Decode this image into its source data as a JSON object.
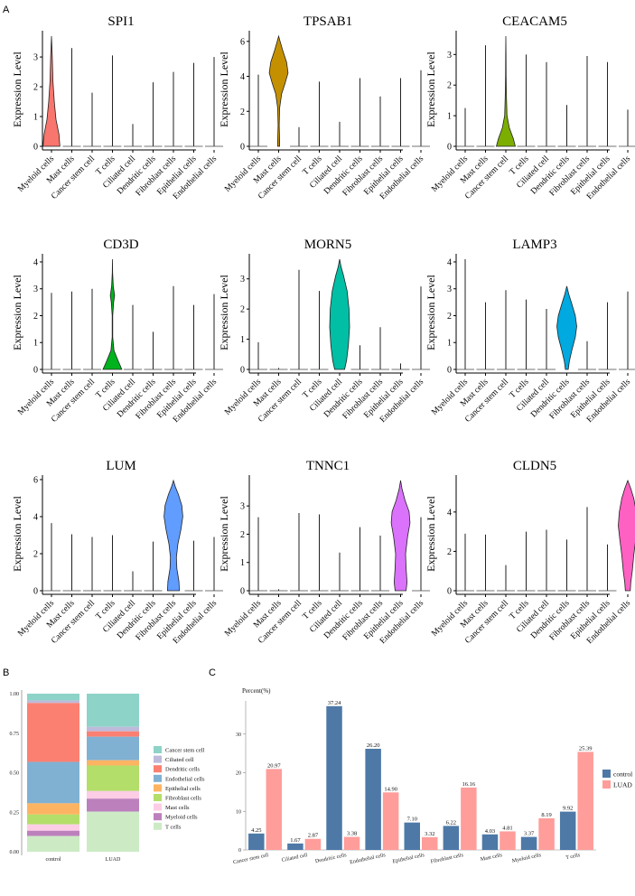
{
  "panels": {
    "a": "A",
    "b": "B",
    "c": "C"
  },
  "chart_data": [
    {
      "type": "violin",
      "panel": "A",
      "ylabel": "Expression Level",
      "categories": [
        "Myeloid cells",
        "Mast cells",
        "Cancer stem cell",
        "T cells",
        "Ciliated cell",
        "Dendritic cells",
        "Fibroblast cells",
        "Epithelial cells",
        "Endothelial cells"
      ],
      "genes": [
        {
          "title": "SPI1",
          "ylim": [
            0,
            3.7
          ],
          "ticks": [
            0,
            1,
            2,
            3
          ],
          "color": "#F8766D",
          "highlight": 0,
          "max": [
            3.7,
            3.3,
            1.8,
            3.05,
            0.75,
            2.15,
            2.5,
            2.8,
            3.0
          ],
          "profile": [
            [
              0,
              0.85
            ],
            [
              0.4,
              0.75
            ],
            [
              0.9,
              0.45
            ],
            [
              1.5,
              0.28
            ],
            [
              2.2,
              0.15
            ],
            [
              3.0,
              0.08
            ],
            [
              3.7,
              0.0
            ]
          ]
        },
        {
          "title": "TPSAB1",
          "ylim": [
            0,
            6.3
          ],
          "ticks": [
            0,
            2,
            4,
            6
          ],
          "color": "#C59000",
          "highlight": 1,
          "max": [
            4.1,
            6.3,
            1.1,
            3.7,
            1.4,
            3.9,
            2.85,
            3.9,
            4.35
          ],
          "profile": [
            [
              0,
              0.1
            ],
            [
              0.3,
              0.1
            ],
            [
              1.2,
              0.05
            ],
            [
              2.2,
              0.1
            ],
            [
              3.0,
              0.3
            ],
            [
              3.6,
              0.65
            ],
            [
              4.2,
              0.95
            ],
            [
              4.8,
              0.8
            ],
            [
              5.5,
              0.4
            ],
            [
              6.0,
              0.15
            ],
            [
              6.3,
              0.0
            ]
          ]
        },
        {
          "title": "CEACAM5",
          "ylim": [
            0,
            3.6
          ],
          "ticks": [
            0,
            1,
            2,
            3
          ],
          "color": "#7CAE00",
          "highlight": 2,
          "max": [
            1.25,
            3.3,
            3.6,
            3.0,
            2.75,
            1.35,
            2.95,
            2.75,
            1.2
          ],
          "profile": [
            [
              0,
              0.95
            ],
            [
              0.25,
              0.75
            ],
            [
              0.6,
              0.35
            ],
            [
              1.0,
              0.12
            ],
            [
              1.6,
              0.06
            ],
            [
              2.3,
              0.03
            ],
            [
              3.0,
              0.02
            ],
            [
              3.6,
              0.0
            ]
          ]
        },
        {
          "title": "CD3D",
          "ylim": [
            0,
            4.1
          ],
          "ticks": [
            0,
            1,
            2,
            3,
            4
          ],
          "color": "#00B31E",
          "highlight": 3,
          "max": [
            2.85,
            2.9,
            3.0,
            4.1,
            2.4,
            1.4,
            3.1,
            2.4,
            2.8
          ],
          "profile": [
            [
              0,
              0.95
            ],
            [
              0.3,
              0.6
            ],
            [
              0.7,
              0.15
            ],
            [
              1.2,
              0.03
            ],
            [
              2.0,
              0.03
            ],
            [
              2.5,
              0.12
            ],
            [
              2.75,
              0.22
            ],
            [
              3.1,
              0.08
            ],
            [
              3.6,
              0.02
            ],
            [
              4.1,
              0.0
            ]
          ]
        },
        {
          "title": "MORN5",
          "ylim": [
            0,
            3.65
          ],
          "ticks": [
            0,
            1,
            2,
            3
          ],
          "color": "#00BFA5",
          "highlight": 4,
          "max": [
            0.9,
            0.05,
            3.3,
            2.6,
            3.65,
            0.8,
            1.4,
            0.2,
            2.75
          ],
          "profile": [
            [
              0,
              0.5
            ],
            [
              0.3,
              0.7
            ],
            [
              0.8,
              0.88
            ],
            [
              1.4,
              1.0
            ],
            [
              2.0,
              0.95
            ],
            [
              2.6,
              0.75
            ],
            [
              3.1,
              0.4
            ],
            [
              3.4,
              0.15
            ],
            [
              3.65,
              0.0
            ]
          ]
        },
        {
          "title": "LAMP3",
          "ylim": [
            0,
            4.1
          ],
          "ticks": [
            0,
            1,
            2,
            3,
            4
          ],
          "color": "#00A9E0",
          "highlight": 5,
          "max": [
            4.1,
            2.5,
            2.95,
            2.6,
            2.25,
            3.1,
            1.05,
            2.5,
            2.9
          ],
          "profile": [
            [
              0,
              0.15
            ],
            [
              0.3,
              0.25
            ],
            [
              0.7,
              0.5
            ],
            [
              1.2,
              0.85
            ],
            [
              1.6,
              1.0
            ],
            [
              2.0,
              0.85
            ],
            [
              2.5,
              0.45
            ],
            [
              2.8,
              0.2
            ],
            [
              3.1,
              0.0
            ]
          ]
        },
        {
          "title": "LUM",
          "ylim": [
            0,
            5.95
          ],
          "ticks": [
            0,
            2,
            4,
            6
          ],
          "color": "#619CFF",
          "highlight": 6,
          "max": [
            3.65,
            3.05,
            2.9,
            3.0,
            1.05,
            2.65,
            5.95,
            2.7,
            2.9
          ],
          "profile": [
            [
              0,
              0.6
            ],
            [
              0.5,
              0.55
            ],
            [
              1.2,
              0.35
            ],
            [
              1.8,
              0.3
            ],
            [
              2.5,
              0.45
            ],
            [
              3.3,
              0.75
            ],
            [
              4.0,
              0.95
            ],
            [
              4.6,
              0.85
            ],
            [
              5.2,
              0.5
            ],
            [
              5.6,
              0.2
            ],
            [
              5.95,
              0.0
            ]
          ]
        },
        {
          "title": "TNNC1",
          "ylim": [
            0,
            3.9
          ],
          "ticks": [
            0,
            1,
            2,
            3
          ],
          "color": "#DB72FB",
          "highlight": 7,
          "max": [
            2.6,
            0.05,
            2.75,
            2.7,
            1.35,
            2.25,
            1.95,
            3.9,
            2.6
          ],
          "profile": [
            [
              0,
              0.55
            ],
            [
              0.3,
              0.65
            ],
            [
              0.8,
              0.55
            ],
            [
              1.3,
              0.5
            ],
            [
              1.9,
              0.7
            ],
            [
              2.4,
              0.95
            ],
            [
              2.8,
              0.85
            ],
            [
              3.2,
              0.45
            ],
            [
              3.6,
              0.15
            ],
            [
              3.9,
              0.0
            ]
          ]
        },
        {
          "title": "CLDN5",
          "ylim": [
            0,
            5.6
          ],
          "ticks": [
            0,
            2,
            4
          ],
          "color": "#FF61C3",
          "highlight": 8,
          "max": [
            2.9,
            2.85,
            1.3,
            3.0,
            3.1,
            2.6,
            4.25,
            2.35,
            5.6
          ],
          "profile": [
            [
              0,
              0.25
            ],
            [
              0.4,
              0.3
            ],
            [
              1.0,
              0.45
            ],
            [
              1.8,
              0.6
            ],
            [
              2.6,
              0.8
            ],
            [
              3.3,
              0.95
            ],
            [
              4.0,
              0.85
            ],
            [
              4.7,
              0.6
            ],
            [
              5.2,
              0.3
            ],
            [
              5.6,
              0.0
            ]
          ]
        }
      ]
    },
    {
      "type": "stacked-bar",
      "panel": "B",
      "categories": [
        "control",
        "LUAD"
      ],
      "yticks": [
        "0.00",
        "0.25",
        "0.50",
        "0.75",
        "1.00"
      ],
      "series": [
        {
          "name": "Cancer stem cell",
          "color": "#8DD3C7",
          "values": [
            0.0425,
            0.2097
          ]
        },
        {
          "name": "Ciliated cell",
          "color": "#BEBADA",
          "values": [
            0.0167,
            0.0287
          ]
        },
        {
          "name": "Dendritic cells",
          "color": "#FB8072",
          "values": [
            0.3724,
            0.0338
          ]
        },
        {
          "name": "Endothelial cells",
          "color": "#80B1D3",
          "values": [
            0.262,
            0.149
          ]
        },
        {
          "name": "Epithelial cells",
          "color": "#FDB462",
          "values": [
            0.071,
            0.0332
          ]
        },
        {
          "name": "Fibroblast cells",
          "color": "#B3DE69",
          "values": [
            0.0622,
            0.1616
          ]
        },
        {
          "name": "Mast cells",
          "color": "#FCCDE5",
          "values": [
            0.0403,
            0.0481
          ]
        },
        {
          "name": "Myeloid cells",
          "color": "#BC80BD",
          "values": [
            0.0337,
            0.0819
          ]
        },
        {
          "name": "T cells",
          "color": "#CCEBC5",
          "values": [
            0.0992,
            0.2539
          ]
        }
      ]
    },
    {
      "type": "bar",
      "panel": "C",
      "ylabel": "Percent(%)",
      "ylim": [
        0,
        40
      ],
      "yticks": [
        0,
        10,
        20,
        30
      ],
      "categories": [
        "Cancer stem cell",
        "Ciliated cell",
        "Dendritic cells",
        "Endothelial cells",
        "Epithelial cells",
        "Fibroblast cells",
        "Mast cells",
        "Myeloid cells",
        "T cells"
      ],
      "series": [
        {
          "name": "control",
          "color": "#4E79A7",
          "values": [
            4.25,
            1.67,
            37.24,
            26.2,
            7.1,
            6.22,
            4.03,
            3.37,
            9.92
          ],
          "labels": [
            "4.25",
            "1.67",
            "37.24",
            "26.20",
            "7.10",
            "6.22",
            "4.03",
            "3.37",
            "9.92"
          ]
        },
        {
          "name": "LUAD",
          "color": "#FF9D9A",
          "values": [
            20.97,
            2.87,
            3.38,
            14.9,
            3.32,
            16.16,
            4.81,
            8.19,
            25.39
          ],
          "labels": [
            "20.97",
            "2.87",
            "3.38",
            "14.90",
            "3.32",
            "16.16",
            "4.81",
            "8.19",
            "25.39"
          ]
        }
      ]
    }
  ]
}
